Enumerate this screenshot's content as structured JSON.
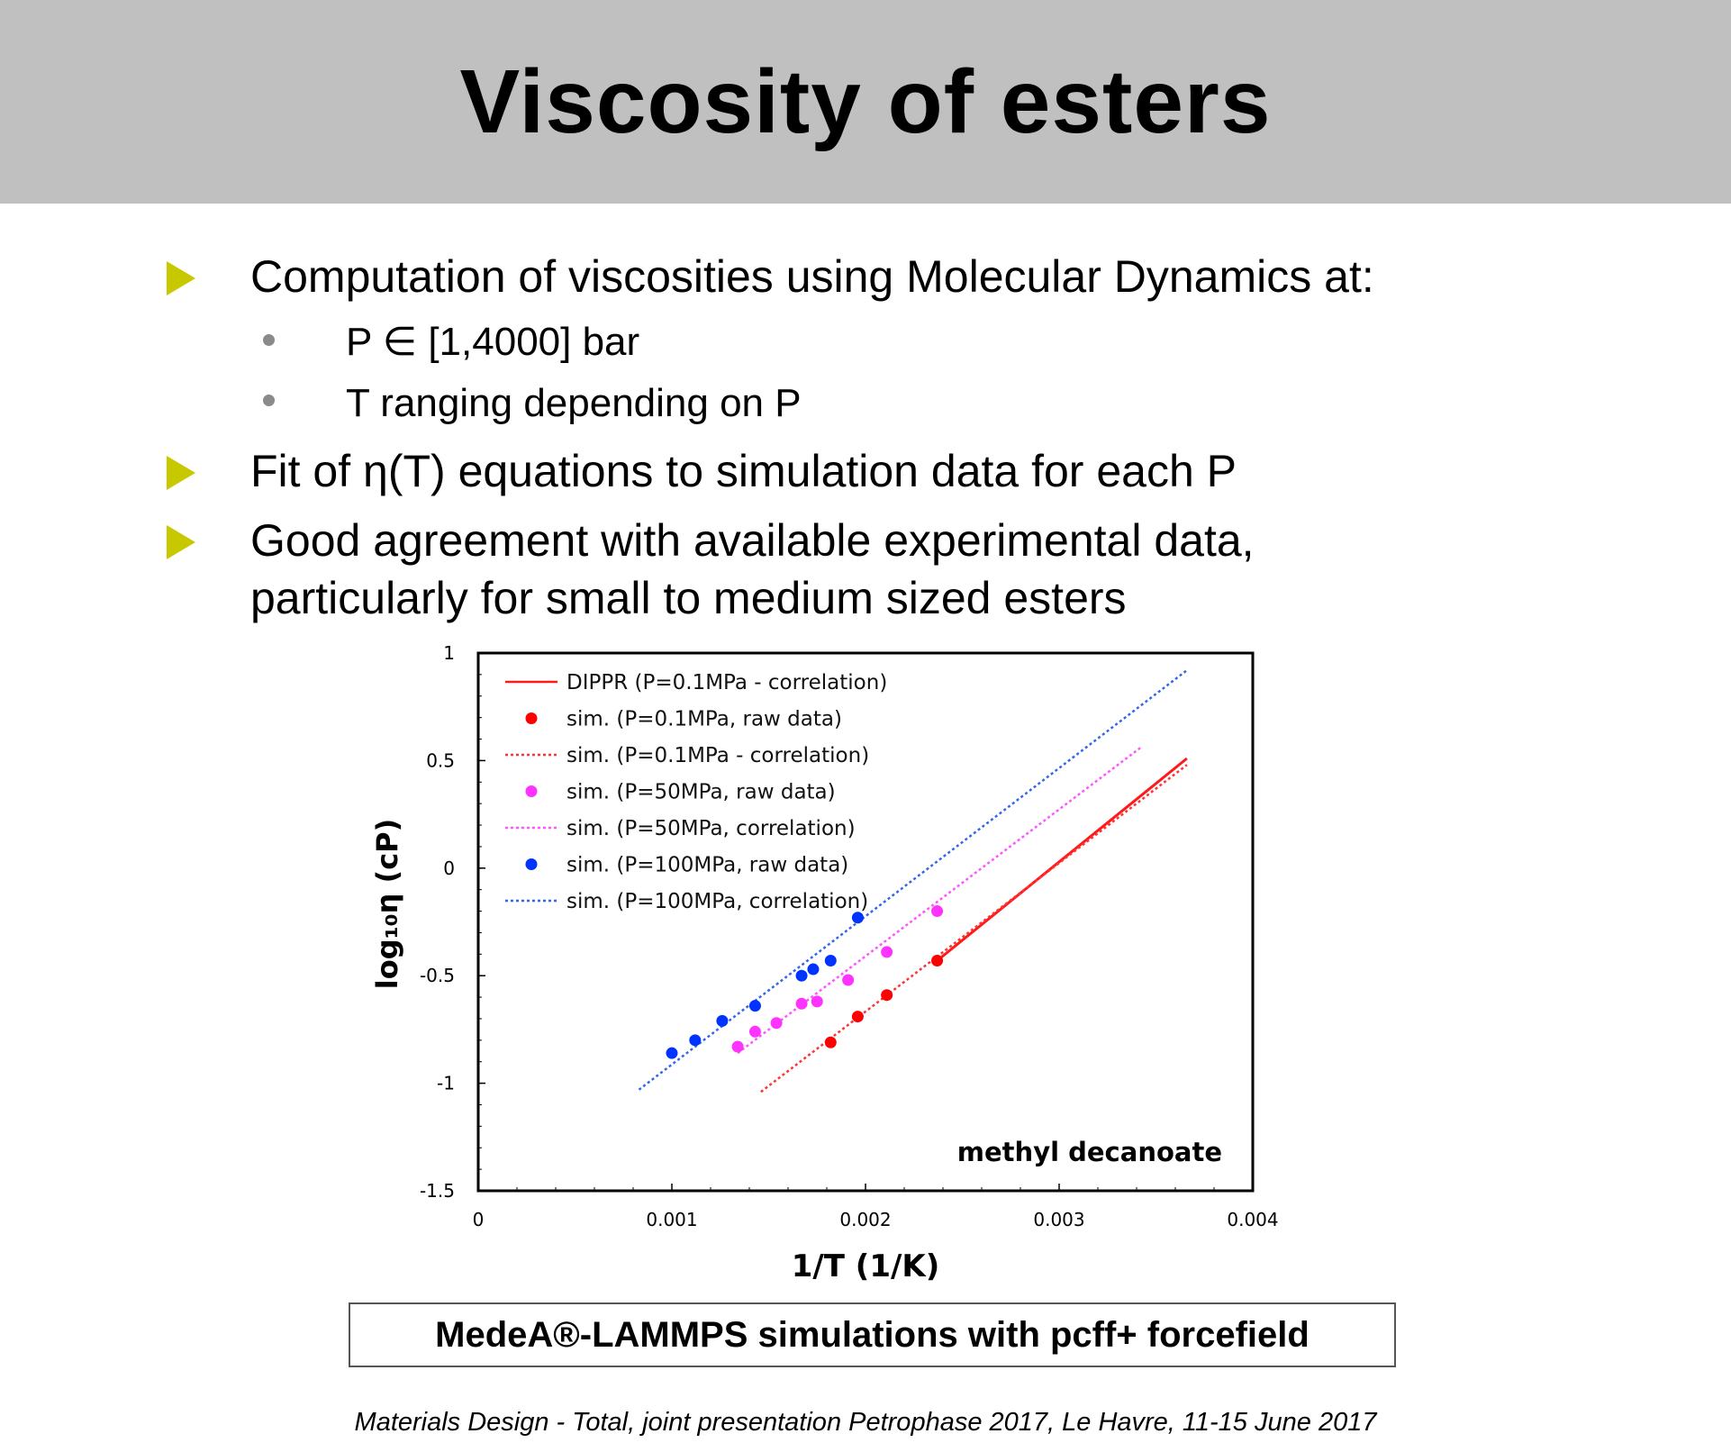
{
  "slide": {
    "title": "Viscosity of esters",
    "bullets": [
      {
        "text": "Computation of viscosities using Molecular Dynamics at:"
      },
      {
        "text": "Fit of η(T) equations to simulation data for each P"
      },
      {
        "text": "Good agreement with available experimental data,"
      },
      {
        "text": "particularly for small to medium sized esters"
      }
    ],
    "sub_bullets": [
      {
        "text": "P ∈ [1,4000] bar"
      },
      {
        "text": "T ranging depending on P"
      }
    ],
    "caption": "MedeA®-LAMMPS simulations with pcff+ forcefield",
    "footer": "Materials Design - Total, joint presentation Petrophase 2017, Le Havre, 11-15 June 2017"
  },
  "chart_data": {
    "type": "scatter",
    "title": "",
    "annotation": "methyl decanoate",
    "xlabel": "1/T (1/K)",
    "ylabel": "log₁₀η (cP)",
    "xlim": [
      0,
      0.004
    ],
    "ylim": [
      -1.5,
      1
    ],
    "x_ticks": [
      "0",
      "0.001",
      "0.002",
      "0.003",
      "0.004"
    ],
    "y_ticks": [
      "1",
      "0.5",
      "0",
      "-0.5",
      "-1",
      "-1.5"
    ],
    "grid": false,
    "legend_position": "top-left",
    "series": [
      {
        "name": "DIPPR (P=0.1MPa - correlation)",
        "kind": "line",
        "style": "solid",
        "color": "#ff1a1a",
        "points": [
          [
            0.00237,
            -0.43
          ],
          [
            0.00366,
            0.51
          ]
        ]
      },
      {
        "name": "sim. (P=0.1MPa, raw data)",
        "kind": "scatter",
        "color": "#ff0000",
        "points": [
          [
            0.00182,
            -0.81
          ],
          [
            0.00196,
            -0.69
          ],
          [
            0.00211,
            -0.59
          ],
          [
            0.00237,
            -0.43
          ]
        ]
      },
      {
        "name": "sim. (P=0.1MPa - correlation)",
        "kind": "line",
        "style": "dotted",
        "color": "#ff3333",
        "points": [
          [
            0.00146,
            -1.04
          ],
          [
            0.00366,
            0.48
          ]
        ]
      },
      {
        "name": "sim. (P=50MPa, raw data)",
        "kind": "scatter",
        "color": "#ff33ff",
        "points": [
          [
            0.00134,
            -0.83
          ],
          [
            0.00143,
            -0.76
          ],
          [
            0.00154,
            -0.72
          ],
          [
            0.00167,
            -0.63
          ],
          [
            0.00175,
            -0.62
          ],
          [
            0.00191,
            -0.52
          ],
          [
            0.00211,
            -0.39
          ],
          [
            0.00237,
            -0.2
          ]
        ]
      },
      {
        "name": "sim. (P=50MPa, correlation)",
        "kind": "line",
        "style": "dotted",
        "color": "#ff55ff",
        "points": [
          [
            0.00134,
            -0.86
          ],
          [
            0.00342,
            0.56
          ]
        ]
      },
      {
        "name": "sim. (P=100MPa, raw data)",
        "kind": "scatter",
        "color": "#0033ff",
        "points": [
          [
            0.001,
            -0.86
          ],
          [
            0.00112,
            -0.8
          ],
          [
            0.00126,
            -0.71
          ],
          [
            0.00143,
            -0.64
          ],
          [
            0.00167,
            -0.5
          ],
          [
            0.00173,
            -0.47
          ],
          [
            0.00182,
            -0.43
          ],
          [
            0.00196,
            -0.23
          ]
        ]
      },
      {
        "name": "sim. (P=100MPa, correlation)",
        "kind": "line",
        "style": "dotted",
        "color": "#3366ee",
        "points": [
          [
            0.00083,
            -1.03
          ],
          [
            0.00366,
            0.92
          ]
        ]
      }
    ]
  }
}
